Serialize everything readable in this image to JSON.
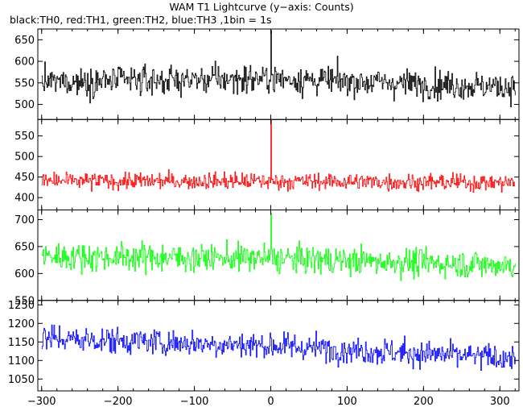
{
  "title": "WAM T1 Lightcurve (y−axis: Counts)",
  "subtitle": "black:TH0, red:TH1, green:TH2, blue:TH3 ,1bin = 1s",
  "chart_data": {
    "type": "line",
    "xlim": [
      -305,
      325
    ],
    "xticks": [
      -300,
      -200,
      -100,
      0,
      100,
      200,
      300
    ],
    "xtick_labels": [
      "−300",
      "−200",
      "−100",
      "0",
      "100",
      "200",
      "300"
    ],
    "bin_seconds": 1,
    "grid": false,
    "series": [
      {
        "name": "TH0",
        "color": "#000000",
        "ylim": [
          465,
          675
        ],
        "yticks": [
          500,
          550,
          600,
          650
        ],
        "ytick_labels": [
          "500",
          "550",
          "600",
          "650"
        ],
        "mean": 555,
        "noise_sd": 32,
        "spike_x": 0,
        "spike_y": 672,
        "approx_trend": [
          [
            -300,
            552
          ],
          [
            0,
            560
          ],
          [
            320,
            540
          ]
        ]
      },
      {
        "name": "TH1",
        "color": "#ff0000",
        "ylim": [
          370,
          590
        ],
        "yticks": [
          400,
          450,
          500,
          550
        ],
        "ytick_labels": [
          "400",
          "450",
          "500",
          "550"
        ],
        "mean": 438,
        "noise_sd": 20,
        "spike_x": 0,
        "spike_y": 588,
        "approx_trend": [
          [
            -300,
            440
          ],
          [
            0,
            440
          ],
          [
            320,
            436
          ]
        ]
      },
      {
        "name": "TH2",
        "color": "#00ff00",
        "ylim": [
          550,
          718
        ],
        "yticks": [
          550,
          600,
          650,
          700
        ],
        "ytick_labels": [
          "550",
          "600",
          "650",
          "700"
        ],
        "mean": 626,
        "noise_sd": 25,
        "spike_x": 0,
        "spike_y": 712,
        "approx_trend": [
          [
            -300,
            632
          ],
          [
            0,
            628
          ],
          [
            320,
            615
          ]
        ]
      },
      {
        "name": "TH3",
        "color": "#0000ff",
        "ylim": [
          1018,
          1262
        ],
        "yticks": [
          1050,
          1100,
          1150,
          1200,
          1250
        ],
        "ytick_labels": [
          "1050",
          "1100",
          "1150",
          "1200",
          "1250"
        ],
        "mean": 1140,
        "noise_sd": 35,
        "spike_x": null,
        "spike_y": null,
        "approx_trend": [
          [
            -300,
            1160
          ],
          [
            0,
            1140
          ],
          [
            320,
            1105
          ]
        ]
      }
    ]
  }
}
